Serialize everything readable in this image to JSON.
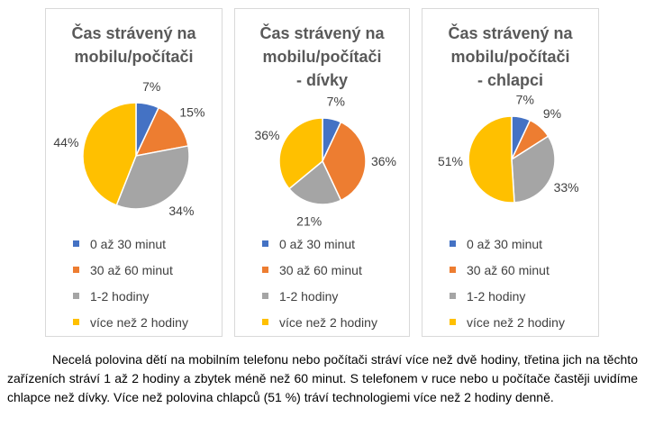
{
  "legend_labels": [
    "0 až 30 minut",
    "30 až 60 minut",
    "1-2 hodiny",
    "více než 2 hodiny"
  ],
  "colors": [
    "#4472c4",
    "#ed7d31",
    "#a5a5a5",
    "#ffc000"
  ],
  "chart_data": [
    {
      "type": "pie",
      "title": "Čas strávený na\nmobilu/počítači",
      "categories": [
        "0 až 30 minut",
        "30 až 60 minut",
        "1-2 hodiny",
        "více než 2 hodiny"
      ],
      "values": [
        7,
        15,
        34,
        44
      ],
      "labels": [
        "7%",
        "15%",
        "34%",
        "44%"
      ]
    },
    {
      "type": "pie",
      "title": "Čas strávený na\nmobilu/počítači\n- dívky",
      "categories": [
        "0 až 30 minut",
        "30 až 60 minut",
        "1-2 hodiny",
        "více než 2 hodiny"
      ],
      "values": [
        7,
        36,
        21,
        36
      ],
      "labels": [
        "7%",
        "36%",
        "21%",
        "36%"
      ]
    },
    {
      "type": "pie",
      "title": "Čas strávený na\nmobilu/počítači\n- chlapci",
      "categories": [
        "0 až 30 minut",
        "30 až 60 minut",
        "1-2 hodiny",
        "více než 2 hodiny"
      ],
      "values": [
        7,
        9,
        33,
        51
      ],
      "labels": [
        "7%",
        "9%",
        "33%",
        "51%"
      ]
    }
  ],
  "paragraph": "Necelá polovina dětí na mobilním telefonu nebo počítači stráví více než dvě hodiny, třetina jich na těchto zařízeních stráví 1 až 2 hodiny a zbytek méně než 60 minut. S telefonem v ruce nebo u počítače častěji uvidíme chlapce než dívky. Více než polovina chlapců (51 %) tráví technologiemi více než 2 hodiny denně."
}
